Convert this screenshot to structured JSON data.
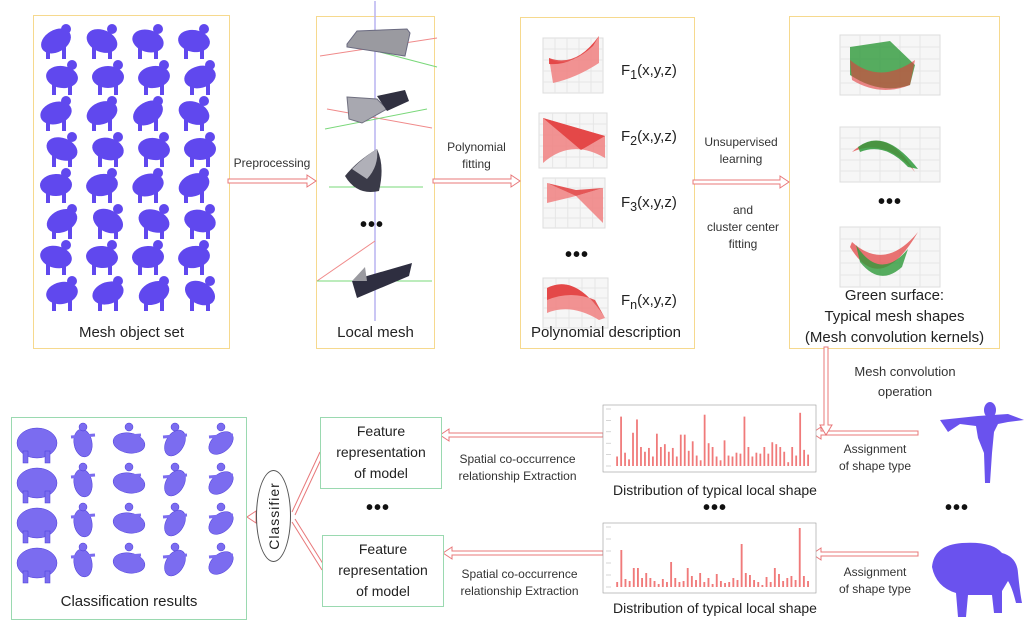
{
  "stages": {
    "mesh_set": {
      "caption": "Mesh object set"
    },
    "local_mesh": {
      "caption": "Local mesh",
      "ellipsis": "•••"
    },
    "polynomial": {
      "caption": "Polynomial description",
      "functions": [
        "F1(x,y,z)",
        "F2(x,y,z)",
        "F3(x,y,z)",
        "Fn(x,y,z)"
      ],
      "ellipsis": "•••"
    },
    "kernels": {
      "caption_lines": [
        "Green surface:",
        "Typical mesh shapes",
        "(Mesh convolution kernels)"
      ],
      "ellipsis": "•••"
    }
  },
  "arrows": {
    "preprocessing": "Preprocessing",
    "polynomial_fitting": [
      "Polynomial",
      "fitting"
    ],
    "unsupervised": [
      "Unsupervised",
      "learning"
    ],
    "cluster": [
      "and",
      "cluster center",
      "fitting"
    ],
    "mesh_conv": [
      "Mesh convolution",
      "operation"
    ],
    "assignment": [
      "Assignment",
      "of shape type"
    ],
    "spatial": [
      "Spatial co-occurrence",
      "relationship Extraction"
    ]
  },
  "bottom": {
    "results_caption": "Classification results",
    "classifier": "Classifier",
    "feature_lines": [
      "Feature",
      "representation",
      "of  model"
    ],
    "distribution_caption": "Distribution of typical local shape",
    "ellipsis": "•••"
  },
  "histograms": [
    {
      "values": [
        0.01,
        0.052,
        0.014,
        0.007,
        0.035,
        0.049,
        0.02,
        0.015,
        0.019,
        0.01,
        0.034,
        0.02,
        0.023,
        0.015,
        0.019,
        0.01,
        0.033,
        0.033,
        0.016,
        0.026,
        0.011,
        0.006,
        0.054,
        0.024,
        0.02,
        0.01,
        0.006,
        0.027,
        0.011,
        0.01,
        0.014,
        0.013,
        0.052,
        0.02,
        0.01,
        0.014,
        0.013,
        0.02,
        0.013,
        0.025,
        0.023,
        0.02,
        0.015,
        0.004,
        0.02,
        0.011,
        0.056,
        0.017,
        0.012
      ],
      "ymax": 0.06
    },
    {
      "values": [
        0.01,
        0.074,
        0.016,
        0.012,
        0.038,
        0.038,
        0.018,
        0.028,
        0.018,
        0.012,
        0.006,
        0.016,
        0.01,
        0.05,
        0.018,
        0.01,
        0.012,
        0.038,
        0.022,
        0.014,
        0.028,
        0.01,
        0.018,
        0.006,
        0.026,
        0.012,
        0.008,
        0.01,
        0.018,
        0.014,
        0.086,
        0.028,
        0.024,
        0.014,
        0.01,
        0.004,
        0.02,
        0.01,
        0.038,
        0.026,
        0.012,
        0.018,
        0.022,
        0.014,
        0.118,
        0.022,
        0.012
      ],
      "ymax": 0.12
    }
  ],
  "colors": {
    "box_yellow": "#f6d98e",
    "box_green": "#9ad9b0",
    "arrow": "#e8787a",
    "mesh_purple": "#6048ee",
    "surface_red": "#e23b3b",
    "surface_green": "#2e9a3a"
  }
}
